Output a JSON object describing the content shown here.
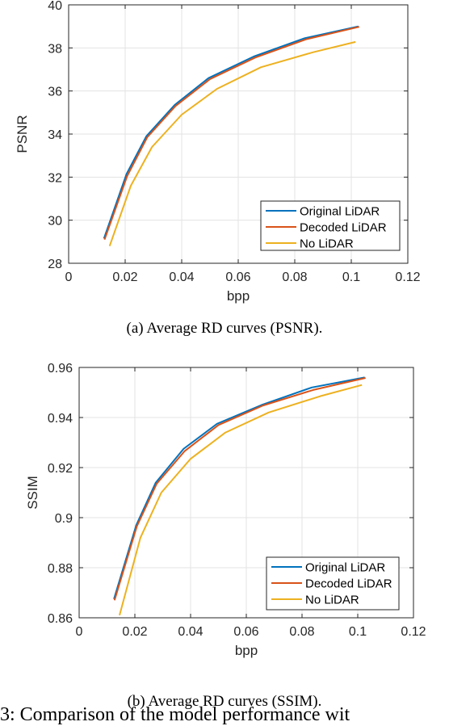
{
  "captions": {
    "a": "(a) Average RD curves (PSNR).",
    "b": "(b) Average RD curves (SSIM)."
  },
  "bottom_text": "3: Comparison of the model performance wit",
  "chart_data": [
    {
      "type": "line",
      "xlabel": "bpp",
      "ylabel": "PSNR",
      "xlim": [
        0,
        0.12
      ],
      "ylim": [
        28,
        40
      ],
      "xticks": [
        "0",
        "0.02",
        "0.04",
        "0.06",
        "0.08",
        "0.1",
        "0.12"
      ],
      "yticks": [
        "28",
        "30",
        "32",
        "34",
        "36",
        "38",
        "40"
      ],
      "grid": true,
      "legend_position": "bottom-right",
      "series": [
        {
          "name": "Original LiDAR",
          "color": "#0072bd",
          "points": [
            [
              0.0125,
              29.15
            ],
            [
              0.0205,
              32.15
            ],
            [
              0.0275,
              33.9
            ],
            [
              0.0375,
              35.35
            ],
            [
              0.0495,
              36.6
            ],
            [
              0.0655,
              37.6
            ],
            [
              0.0835,
              38.45
            ],
            [
              0.1025,
              39.0
            ]
          ]
        },
        {
          "name": "Decoded  LiDAR",
          "color": "#d95319",
          "points": [
            [
              0.0127,
              29.1
            ],
            [
              0.0207,
              32.05
            ],
            [
              0.0278,
              33.85
            ],
            [
              0.0378,
              35.3
            ],
            [
              0.05,
              36.55
            ],
            [
              0.066,
              37.55
            ],
            [
              0.084,
              38.4
            ],
            [
              0.1028,
              38.98
            ]
          ]
        },
        {
          "name": "No LiDAR",
          "color": "#edb120",
          "points": [
            [
              0.0145,
              28.8
            ],
            [
              0.022,
              31.6
            ],
            [
              0.0295,
              33.4
            ],
            [
              0.04,
              34.9
            ],
            [
              0.0525,
              36.1
            ],
            [
              0.068,
              37.1
            ],
            [
              0.0865,
              37.8
            ],
            [
              0.1015,
              38.28
            ]
          ]
        }
      ]
    },
    {
      "type": "line",
      "xlabel": "bpp",
      "ylabel": "SSIM",
      "xlim": [
        0,
        0.12
      ],
      "ylim": [
        0.86,
        0.96
      ],
      "xticks": [
        "0",
        "0.02",
        "0.04",
        "0.06",
        "0.08",
        "0.1",
        "0.12"
      ],
      "yticks": [
        "0.86",
        "0.88",
        "0.9",
        "0.92",
        "0.94",
        "0.96"
      ],
      "grid": true,
      "legend_position": "bottom-right",
      "series": [
        {
          "name": "Original LiDAR",
          "color": "#0072bd",
          "points": [
            [
              0.0125,
              0.8675
            ],
            [
              0.0205,
              0.897
            ],
            [
              0.0275,
              0.914
            ],
            [
              0.0375,
              0.9275
            ],
            [
              0.0495,
              0.9375
            ],
            [
              0.0655,
              0.945
            ],
            [
              0.0835,
              0.952
            ],
            [
              0.1025,
              0.956
            ]
          ]
        },
        {
          "name": "Decoded  LiDAR",
          "color": "#d95319",
          "points": [
            [
              0.0127,
              0.867
            ],
            [
              0.0207,
              0.8965
            ],
            [
              0.0278,
              0.9135
            ],
            [
              0.0378,
              0.9265
            ],
            [
              0.05,
              0.937
            ],
            [
              0.066,
              0.9448
            ],
            [
              0.084,
              0.951
            ],
            [
              0.1028,
              0.9558
            ]
          ]
        },
        {
          "name": "No LiDAR",
          "color": "#edb120",
          "points": [
            [
              0.0145,
              0.861
            ],
            [
              0.022,
              0.892
            ],
            [
              0.0295,
              0.91
            ],
            [
              0.04,
              0.9235
            ],
            [
              0.0525,
              0.934
            ],
            [
              0.068,
              0.942
            ],
            [
              0.0865,
              0.9485
            ],
            [
              0.1015,
              0.953
            ]
          ]
        }
      ]
    }
  ]
}
